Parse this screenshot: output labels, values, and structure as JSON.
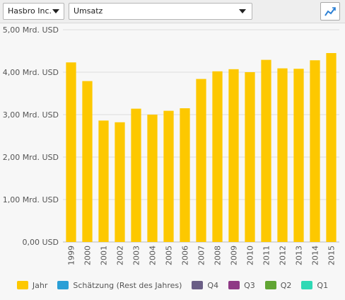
{
  "toolbar": {
    "company": "Hasbro Inc.",
    "metric": "Umsatz",
    "chart_icon": "line-chart-icon"
  },
  "colors": {
    "bar": "#fdc800",
    "grid": "#dedede",
    "axis": "#555555"
  },
  "legend": [
    {
      "label": "Jahr",
      "color": "#fdc800"
    },
    {
      "label": "Schätzung (Rest des Jahres)",
      "color": "#2a9fd6"
    },
    {
      "label": "Q4",
      "color": "#6a5e86"
    },
    {
      "label": "Q3",
      "color": "#8f3a86"
    },
    {
      "label": "Q2",
      "color": "#61a533"
    },
    {
      "label": "Q1",
      "color": "#2fd9b5"
    }
  ],
  "chart_data": {
    "type": "bar",
    "categories": [
      "1999",
      "2000",
      "2001",
      "2002",
      "2003",
      "2004",
      "2005",
      "2006",
      "2007",
      "2008",
      "2009",
      "2010",
      "2011",
      "2012",
      "2013",
      "2014",
      "2015"
    ],
    "values": [
      4.23,
      3.79,
      2.86,
      2.82,
      3.14,
      3.0,
      3.09,
      3.15,
      3.84,
      4.02,
      4.07,
      4.0,
      4.29,
      4.09,
      4.08,
      4.28,
      4.45
    ],
    "ylim": [
      0,
      5
    ],
    "yticks": [
      "0,00 USD",
      "1,00 Mrd. USD",
      "2,00 Mrd. USD",
      "3,00 Mrd. USD",
      "4,00 Mrd. USD",
      "5,00 Mrd. USD"
    ],
    "title": "",
    "xlabel": "",
    "ylabel": "",
    "grid": true
  }
}
